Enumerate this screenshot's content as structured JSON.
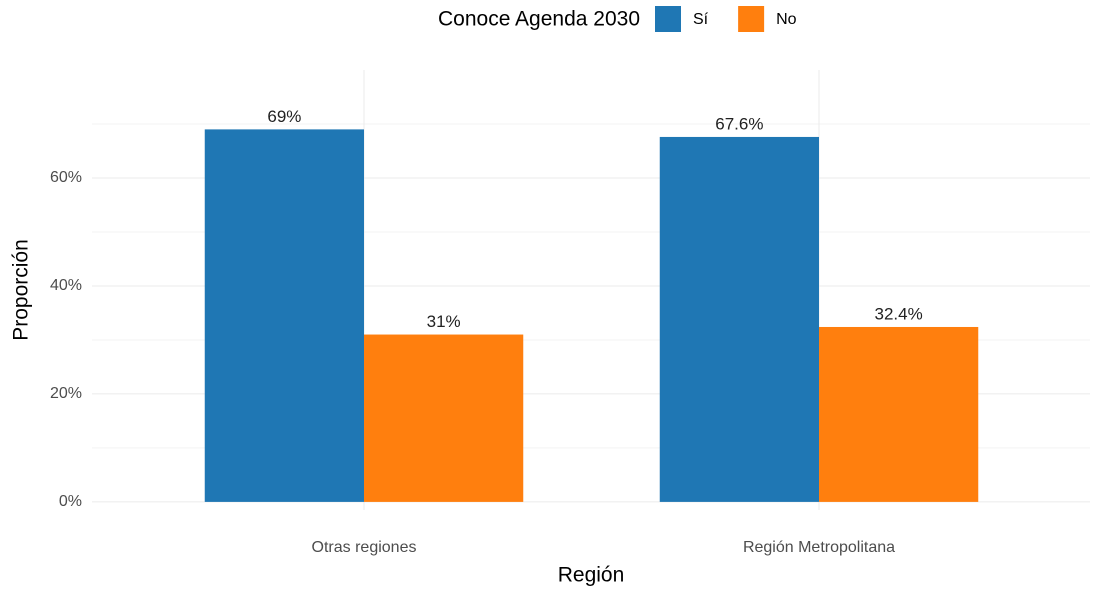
{
  "chart_data": {
    "type": "bar",
    "x_label": "Región",
    "y_label": "Proporción",
    "legend_title": "Conoce Agenda 2030",
    "legend_position": "top",
    "categories": [
      "Otras regiones",
      "Región Metropolitana"
    ],
    "series": [
      {
        "name": "Sí",
        "color": "#1f77b4",
        "values": [
          69,
          67.6
        ],
        "value_labels": [
          "69%",
          "67.6%"
        ]
      },
      {
        "name": "No",
        "color": "#ff7f0e",
        "values": [
          31,
          32.4
        ],
        "value_labels": [
          "31%",
          "32.4%"
        ]
      }
    ],
    "ylim": [
      -1.5,
      80
    ],
    "yticks": [
      {
        "value": 0,
        "label": "0%"
      },
      {
        "value": 20,
        "label": "20%"
      },
      {
        "value": 40,
        "label": "40%"
      },
      {
        "value": 60,
        "label": "60%"
      }
    ],
    "minor_yticks": [
      10,
      30,
      50,
      70
    ],
    "grid": true
  }
}
